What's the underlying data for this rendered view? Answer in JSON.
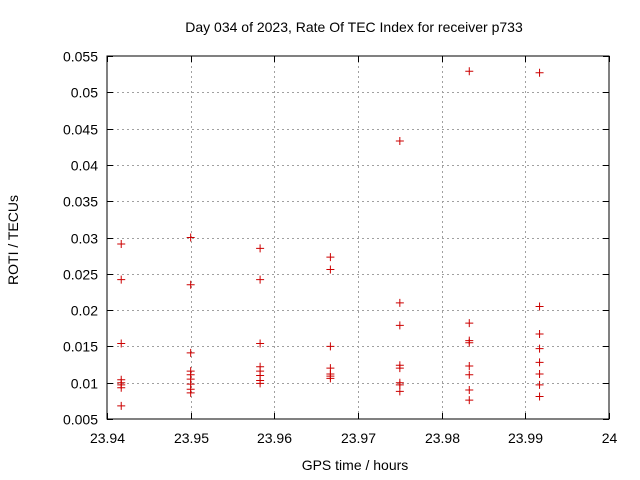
{
  "chart_data": {
    "type": "scatter",
    "title": "Day 034 of 2023, Rate Of TEC Index for receiver p733",
    "xlabel": "GPS time / hours",
    "ylabel": "ROTI / TECUs",
    "xlim": [
      23.94,
      24.0
    ],
    "ylim": [
      0.005,
      0.055
    ],
    "xticks": [
      23.94,
      23.95,
      23.96,
      23.97,
      23.98,
      23.99,
      24.0
    ],
    "xtick_labels": [
      "23.94",
      "23.95",
      "23.96",
      "23.97",
      "23.98",
      "23.99",
      "24"
    ],
    "yticks": [
      0.005,
      0.01,
      0.015,
      0.02,
      0.025,
      0.03,
      0.035,
      0.04,
      0.045,
      0.05,
      0.055
    ],
    "ytick_labels": [
      "0.005",
      "0.01",
      "0.015",
      "0.02",
      "0.025",
      "0.03",
      "0.035",
      "0.04",
      "0.045",
      "0.05",
      "0.055"
    ],
    "grid": true,
    "marker": "+",
    "marker_color": "#cc0000",
    "series": [
      {
        "name": "ROTI",
        "points": [
          [
            23.9417,
            0.0291
          ],
          [
            23.9417,
            0.0242
          ],
          [
            23.9417,
            0.0154
          ],
          [
            23.9417,
            0.0104
          ],
          [
            23.9417,
            0.01
          ],
          [
            23.9417,
            0.0097
          ],
          [
            23.9417,
            0.0093
          ],
          [
            23.9417,
            0.0068
          ],
          [
            23.95,
            0.03
          ],
          [
            23.95,
            0.0235
          ],
          [
            23.95,
            0.0141
          ],
          [
            23.95,
            0.0116
          ],
          [
            23.95,
            0.0111
          ],
          [
            23.95,
            0.0105
          ],
          [
            23.95,
            0.0098
          ],
          [
            23.95,
            0.0091
          ],
          [
            23.95,
            0.0086
          ],
          [
            23.9583,
            0.0285
          ],
          [
            23.9583,
            0.0242
          ],
          [
            23.9583,
            0.0154
          ],
          [
            23.9583,
            0.0122
          ],
          [
            23.9583,
            0.0116
          ],
          [
            23.9583,
            0.011
          ],
          [
            23.9583,
            0.0103
          ],
          [
            23.9583,
            0.0099
          ],
          [
            23.9667,
            0.0273
          ],
          [
            23.9667,
            0.0256
          ],
          [
            23.9667,
            0.015
          ],
          [
            23.9667,
            0.012
          ],
          [
            23.9667,
            0.0112
          ],
          [
            23.9667,
            0.0109
          ],
          [
            23.9667,
            0.0106
          ],
          [
            23.975,
            0.0433
          ],
          [
            23.975,
            0.021
          ],
          [
            23.975,
            0.0179
          ],
          [
            23.975,
            0.0124
          ],
          [
            23.975,
            0.012
          ],
          [
            23.975,
            0.01
          ],
          [
            23.975,
            0.0097
          ],
          [
            23.975,
            0.0088
          ],
          [
            23.9833,
            0.0529
          ],
          [
            23.9833,
            0.0182
          ],
          [
            23.9833,
            0.0158
          ],
          [
            23.9833,
            0.0155
          ],
          [
            23.9833,
            0.0123
          ],
          [
            23.9833,
            0.0111
          ],
          [
            23.9833,
            0.009
          ],
          [
            23.9833,
            0.0076
          ],
          [
            23.9917,
            0.0527
          ],
          [
            23.9917,
            0.0205
          ],
          [
            23.9917,
            0.0167
          ],
          [
            23.9917,
            0.0147
          ],
          [
            23.9917,
            0.0128
          ],
          [
            23.9917,
            0.0112
          ],
          [
            23.9917,
            0.0097
          ],
          [
            23.9917,
            0.0081
          ]
        ]
      }
    ]
  }
}
